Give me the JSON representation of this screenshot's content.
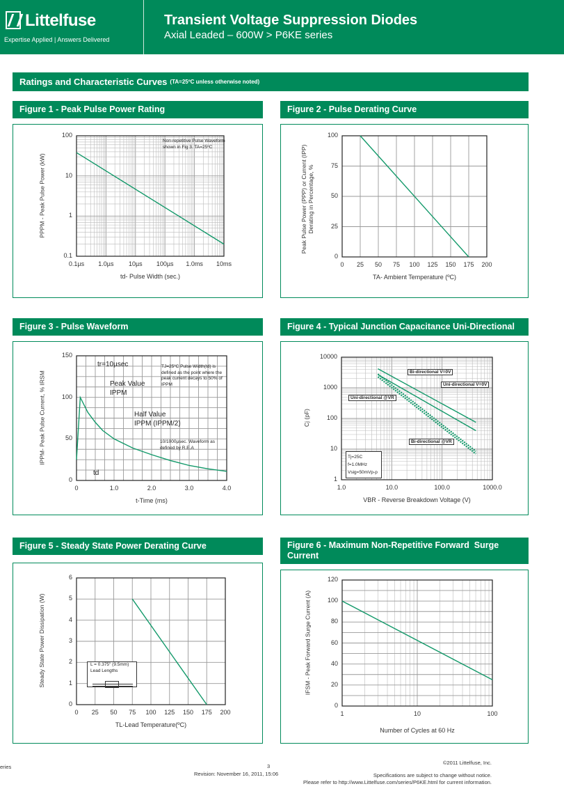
{
  "header": {
    "brand": "Littelfuse",
    "tagline": "Expertise Applied | Answers Delivered",
    "title": "Transient Voltage Suppression Diodes",
    "subtitle": "Axial Leaded – 600W  >  P6KE series"
  },
  "section": {
    "title": "Ratings and Characteristic Curves",
    "note": "(TA=25ºC unless otherwise noted)"
  },
  "colors": {
    "brand": "#008a5a",
    "curve": "#13996a"
  },
  "chart_data": [
    {
      "id": "fig1",
      "type": "line",
      "title": "Figure 1 - Peak Pulse Power Rating",
      "xlabel": "td- Pulse Width (sec.)",
      "ylabel": "PPPM - Peak Pulse Power (kW)",
      "xscale": "log",
      "yscale": "log",
      "xlim": [
        1e-07,
        0.01
      ],
      "ylim": [
        0.1,
        100
      ],
      "xticks": [
        {
          "v": 1e-07,
          "label": "0.1µs"
        },
        {
          "v": 1e-06,
          "label": "1.0µs"
        },
        {
          "v": 1e-05,
          "label": "10µs"
        },
        {
          "v": 0.0001,
          "label": "100µs"
        },
        {
          "v": 0.001,
          "label": "1.0ms"
        },
        {
          "v": 0.01,
          "label": "10ms"
        }
      ],
      "yticks": [
        {
          "v": 0.1,
          "label": "0.1"
        },
        {
          "v": 1,
          "label": "1"
        },
        {
          "v": 10,
          "label": "10"
        },
        {
          "v": 100,
          "label": "100"
        }
      ],
      "annotation": "Non-repetitive Pulse Waveform shown in Fig 3. TA=25ºC",
      "series": [
        {
          "name": "Peak Pulse Power",
          "points": [
            [
              1e-07,
              38
            ],
            [
              0.01,
              0.2
            ]
          ]
        }
      ]
    },
    {
      "id": "fig2",
      "type": "line",
      "title": "Figure 2 - Pulse Derating Curve",
      "xlabel": "TA- Ambient Temperature (ºC)",
      "ylabel": "Peak Pulse Power (PPP) or Current (IPP) Derating in Percentage, %",
      "xscale": "linear",
      "yscale": "linear",
      "xlim": [
        0,
        200
      ],
      "ylim": [
        0,
        100
      ],
      "xticks": [
        {
          "v": 0,
          "label": "0"
        },
        {
          "v": 25,
          "label": "25"
        },
        {
          "v": 50,
          "label": "50"
        },
        {
          "v": 75,
          "label": "75"
        },
        {
          "v": 100,
          "label": "100"
        },
        {
          "v": 125,
          "label": "125"
        },
        {
          "v": 150,
          "label": "150"
        },
        {
          "v": 175,
          "label": "175"
        },
        {
          "v": 200,
          "label": "200"
        }
      ],
      "yticks": [
        {
          "v": 0,
          "label": "0"
        },
        {
          "v": 25,
          "label": "25"
        },
        {
          "v": 50,
          "label": "50"
        },
        {
          "v": 75,
          "label": "75"
        },
        {
          "v": 100,
          "label": "100"
        }
      ],
      "series": [
        {
          "name": "Derating",
          "points": [
            [
              25,
              100
            ],
            [
              175,
              0
            ]
          ]
        }
      ]
    },
    {
      "id": "fig3",
      "type": "line",
      "title": "Figure 3 - Pulse Waveform",
      "xlabel": "t-Time (ms)",
      "ylabel": "IPPM- Peak Pulse Current, % IRSM",
      "xscale": "linear",
      "yscale": "linear",
      "xlim": [
        0,
        4
      ],
      "ylim": [
        0,
        150
      ],
      "xticks": [
        {
          "v": 0,
          "label": "0"
        },
        {
          "v": 1,
          "label": "1.0"
        },
        {
          "v": 2,
          "label": "2.0"
        },
        {
          "v": 3,
          "label": "3.0"
        },
        {
          "v": 4,
          "label": "4.0"
        }
      ],
      "yticks": [
        {
          "v": 0,
          "label": "0"
        },
        {
          "v": 50,
          "label": "50"
        },
        {
          "v": 100,
          "label": "100"
        },
        {
          "v": 150,
          "label": "150"
        }
      ],
      "annotations": {
        "tr": "tr=10µsec",
        "peak": "Peak Value",
        "peak_sym": "IPPM",
        "half": "Half Value",
        "half_sym": "IPPM (IPPM/2)",
        "td": "td",
        "cond": "TJ=25ºC Pulse Width(td) is defined as the point where the peak current decays to 50% of IPPM",
        "wave": "10/1000µsec. Waveform as defined by R.E.A"
      },
      "series": [
        {
          "name": "Waveform",
          "points": [
            [
              0,
              25
            ],
            [
              0.1,
              100
            ],
            [
              0.3,
              82
            ],
            [
              0.5,
              70
            ],
            [
              0.7,
              60
            ],
            [
              1.0,
              50
            ],
            [
              1.5,
              39
            ],
            [
              2.0,
              31
            ],
            [
              2.5,
              24
            ],
            [
              3.0,
              18
            ],
            [
              3.5,
              14
            ],
            [
              4.0,
              11
            ]
          ]
        }
      ]
    },
    {
      "id": "fig4",
      "type": "line",
      "title": "Figure 4 - Typical Junction Capacitance Uni-Directional",
      "xlabel": "VBR - Reverse Breakdown Voltage (V)",
      "ylabel": "Cj (pF)",
      "xscale": "log",
      "yscale": "log",
      "xlim": [
        1,
        1000
      ],
      "ylim": [
        1,
        10000
      ],
      "xticks": [
        {
          "v": 1,
          "label": "1.0"
        },
        {
          "v": 10,
          "label": "10.0"
        },
        {
          "v": 100,
          "label": "100.0"
        },
        {
          "v": 1000,
          "label": "1000.0"
        }
      ],
      "yticks": [
        {
          "v": 1,
          "label": "1"
        },
        {
          "v": 10,
          "label": "10"
        },
        {
          "v": 100,
          "label": "100"
        },
        {
          "v": 1000,
          "label": "1000"
        },
        {
          "v": 10000,
          "label": "10000"
        }
      ],
      "annotation": "Tj=25C f=1.0MHz Vsig=50mVp-p",
      "series": [
        {
          "name": "Bi-directional V=0V",
          "dashed": false,
          "points": [
            [
              5.3,
              4200
            ],
            [
              470,
              75
            ]
          ]
        },
        {
          "name": "Uni-directional V=0V",
          "dashed": false,
          "points": [
            [
              5.3,
              2700
            ],
            [
              470,
              40
            ]
          ]
        },
        {
          "name": "Uni-directional @VR",
          "dashed": true,
          "points": [
            [
              5.3,
              2300
            ],
            [
              470,
              7
            ]
          ]
        },
        {
          "name": "Bi-directional @VR",
          "dashed": true,
          "points": [
            [
              5.3,
              2800
            ],
            [
              470,
              8.5
            ]
          ]
        }
      ]
    },
    {
      "id": "fig5",
      "type": "line",
      "title": "Figure 5 - Steady State Power Derating Curve",
      "xlabel": "TL-Lead Temperature(ºC)",
      "ylabel": "Steady State Power Dissipation (W)",
      "xscale": "linear",
      "yscale": "linear",
      "xlim": [
        0,
        200
      ],
      "ylim": [
        0,
        6
      ],
      "xticks": [
        {
          "v": 0,
          "label": "0"
        },
        {
          "v": 25,
          "label": "25"
        },
        {
          "v": 50,
          "label": "50"
        },
        {
          "v": 75,
          "label": "75"
        },
        {
          "v": 100,
          "label": "100"
        },
        {
          "v": 125,
          "label": "125"
        },
        {
          "v": 150,
          "label": "150"
        },
        {
          "v": 175,
          "label": "175"
        },
        {
          "v": 200,
          "label": "200"
        }
      ],
      "yticks": [
        {
          "v": 0,
          "label": "0"
        },
        {
          "v": 1,
          "label": "1"
        },
        {
          "v": 2,
          "label": "2"
        },
        {
          "v": 3,
          "label": "3"
        },
        {
          "v": 4,
          "label": "4"
        },
        {
          "v": 5,
          "label": "5"
        },
        {
          "v": 6,
          "label": "6"
        }
      ],
      "annotation": "L = 0.375\" (9.5mm)",
      "annotation2": "Lead Lengths",
      "series": [
        {
          "name": "Derating",
          "points": [
            [
              75,
              5
            ],
            [
              175,
              0
            ]
          ]
        }
      ]
    },
    {
      "id": "fig6",
      "type": "line",
      "title": "Figure 6 - Maximum Non-Repetitive Forward  Surge Current",
      "xlabel": "Number of Cycles at 60 Hz",
      "ylabel": "IFSM - Peak Forward Surge Current (A)",
      "xscale": "log",
      "yscale": "linear",
      "xlim": [
        1,
        100
      ],
      "ylim": [
        0,
        120
      ],
      "xticks": [
        {
          "v": 1,
          "label": "1"
        },
        {
          "v": 10,
          "label": "10"
        },
        {
          "v": 100,
          "label": "100"
        }
      ],
      "yticks": [
        {
          "v": 0,
          "label": "0"
        },
        {
          "v": 20,
          "label": "20"
        },
        {
          "v": 40,
          "label": "40"
        },
        {
          "v": 60,
          "label": "60"
        },
        {
          "v": 80,
          "label": "80"
        },
        {
          "v": 100,
          "label": "100"
        },
        {
          "v": 120,
          "label": "120"
        }
      ],
      "series": [
        {
          "name": "Surge Current",
          "points": [
            [
              1,
              100
            ],
            [
              100,
              25
            ]
          ]
        }
      ]
    }
  ],
  "footer": {
    "left": "eries",
    "page": "3",
    "revision": "Revision: November 16, 2011, 15:06",
    "copyright": "©2011 Littelfuse, Inc.",
    "spec": "Specifications are subject to change without notice.",
    "refer": "Please refer to http://www.Littelfuse.com/series/P6KE.html for current information."
  }
}
